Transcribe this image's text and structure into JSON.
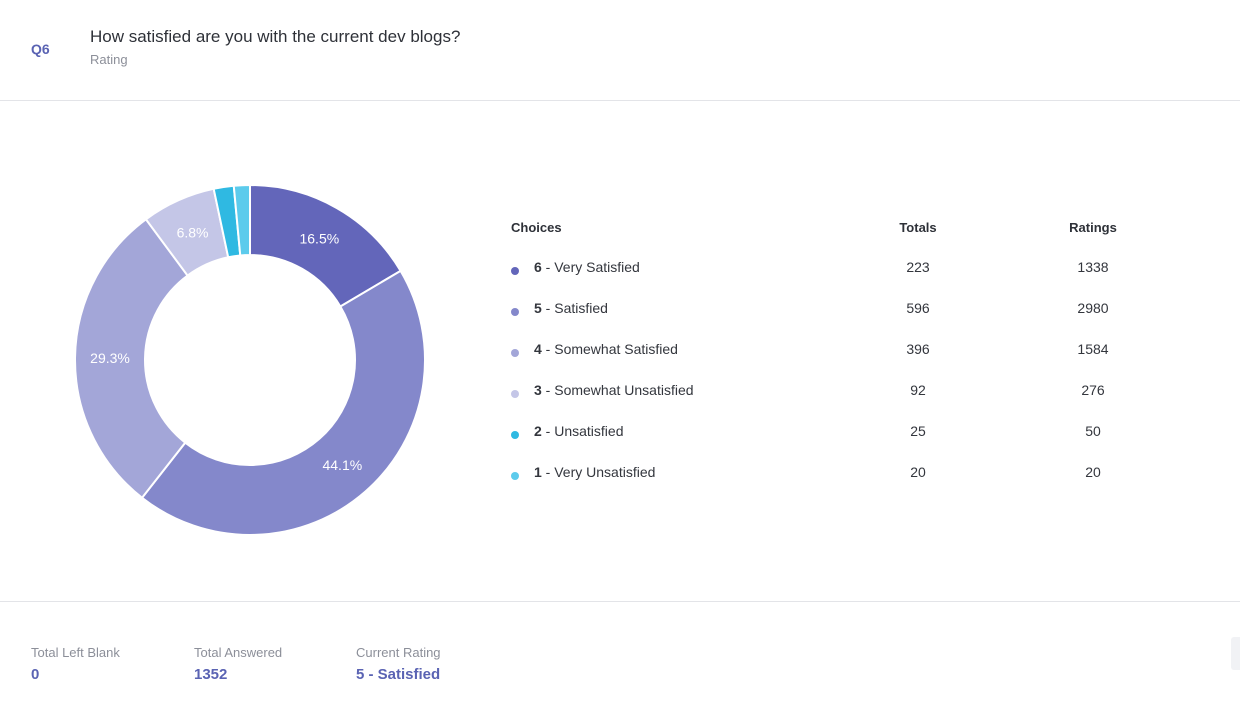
{
  "question": {
    "number": "Q6",
    "title": "How satisfied are you with the current dev blogs?",
    "type": "Rating"
  },
  "table": {
    "headers": {
      "choices": "Choices",
      "totals": "Totals",
      "ratings": "Ratings"
    },
    "rows": [
      {
        "num": "6",
        "label": " - Very Satisfied",
        "total": "223",
        "rating": "1338",
        "color": "#6366ba"
      },
      {
        "num": "5",
        "label": " - Satisfied",
        "total": "596",
        "rating": "2980",
        "color": "#8488cb"
      },
      {
        "num": "4",
        "label": " - Somewhat Satisfied",
        "total": "396",
        "rating": "1584",
        "color": "#a3a6d8"
      },
      {
        "num": "3",
        "label": " - Somewhat Unsatisfied",
        "total": "92",
        "rating": "276",
        "color": "#c4c6e7"
      },
      {
        "num": "2",
        "label": " - Unsatisfied",
        "total": "25",
        "rating": "50",
        "color": "#2fb9e2"
      },
      {
        "num": "1",
        "label": " - Very Unsatisfied",
        "total": "20",
        "rating": "20",
        "color": "#5ccbec"
      }
    ]
  },
  "chart_data": {
    "type": "pie",
    "labels": [
      "6 - Very Satisfied",
      "5 - Satisfied",
      "4 - Somewhat Satisfied",
      "3 - Somewhat Unsatisfied",
      "2 - Unsatisfied",
      "1 - Very Unsatisfied"
    ],
    "values": [
      223,
      596,
      396,
      92,
      25,
      20
    ],
    "slice_labels": [
      "16.5%",
      "44.1%",
      "29.3%",
      "6.8%",
      "",
      ""
    ],
    "colors": [
      "#6366ba",
      "#8488cb",
      "#a3a6d8",
      "#c4c6e7",
      "#2fb9e2",
      "#5ccbec"
    ],
    "donut": true
  },
  "footer": {
    "left_blank": {
      "label": "Total Left Blank",
      "value": "0"
    },
    "answered": {
      "label": "Total Answered",
      "value": "1352"
    },
    "current": {
      "label": "Current Rating",
      "value": "5 - Satisfied"
    }
  }
}
